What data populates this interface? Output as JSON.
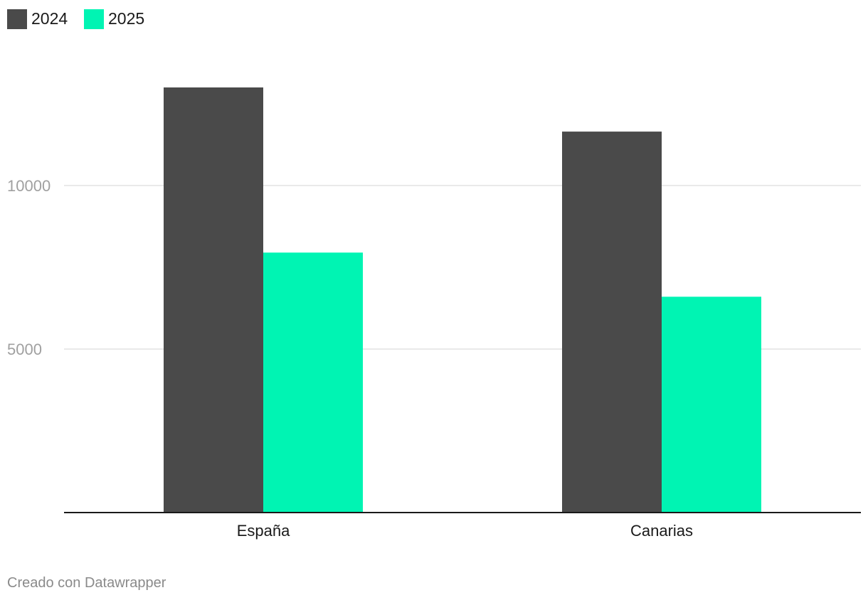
{
  "chart_data": {
    "type": "bar",
    "categories": [
      "España",
      "Canarias"
    ],
    "series": [
      {
        "name": "2024",
        "values": [
          13000,
          11650
        ],
        "color": "#4a4a4a"
      },
      {
        "name": "2025",
        "values": [
          7950,
          6600
        ],
        "color": "#00f4b3"
      }
    ],
    "y_ticks": [
      {
        "value": 5000,
        "label": "5000"
      },
      {
        "value": 10000,
        "label": "10000"
      }
    ],
    "ylim": [
      0,
      15000
    ],
    "grid": true,
    "legend_position": "top-left",
    "title": "",
    "xlabel": "",
    "ylabel": ""
  },
  "footer": {
    "credit": "Creado con Datawrapper"
  }
}
